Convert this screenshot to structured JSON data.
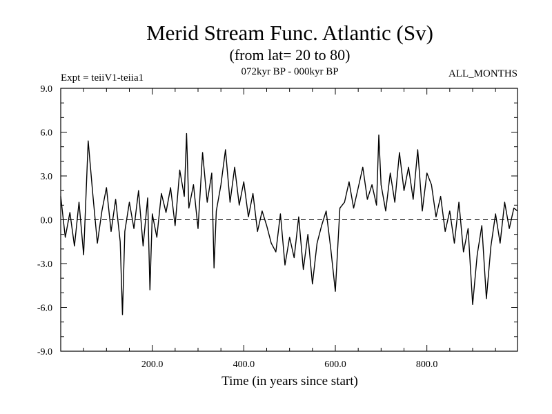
{
  "chart_data": {
    "type": "line",
    "title": "Merid Stream Func. Atlantic (Sv)",
    "subtitle": "(from lat= 20 to 80)",
    "expt_label": "Expt = teiiV1-teiia1",
    "period_label": "072kyr BP - 000kyr BP",
    "months_label": "ALL_MONTHS",
    "xlabel": "Time (in years since start)",
    "ylabel": "",
    "xlim": [
      0,
      998
    ],
    "ylim": [
      -9,
      9
    ],
    "x_ticks": [
      200,
      400,
      600,
      800
    ],
    "x_tick_labels": [
      "200.0",
      "400.0",
      "600.0",
      "800.0"
    ],
    "y_ticks": [
      -9,
      -6,
      -3,
      0,
      3,
      6,
      9
    ],
    "y_tick_labels": [
      "-9.0",
      "-6.0",
      "-3.0",
      "0.0",
      "3.0",
      "6.0",
      "9.0"
    ],
    "zero_line": true,
    "grid": false,
    "line_color": "#000000",
    "series": [
      {
        "x": [
          0,
          10,
          20,
          30,
          40,
          50,
          60,
          70,
          80,
          90,
          100,
          110,
          120,
          130,
          135,
          140,
          150,
          160,
          170,
          180,
          190,
          195,
          200,
          210,
          220,
          230,
          240,
          250,
          260,
          270,
          275,
          280,
          290,
          300,
          310,
          320,
          330,
          335,
          340,
          350,
          360,
          370,
          380,
          390,
          400,
          410,
          420,
          430,
          440,
          450,
          460,
          470,
          480,
          490,
          500,
          510,
          520,
          530,
          540,
          550,
          560,
          570,
          580,
          590,
          600,
          610,
          620,
          630,
          640,
          650,
          660,
          670,
          680,
          690,
          695,
          700,
          710,
          720,
          730,
          740,
          750,
          760,
          770,
          780,
          790,
          800,
          810,
          820,
          830,
          840,
          850,
          860,
          870,
          880,
          890,
          900,
          910,
          920,
          930,
          940,
          950,
          960,
          970,
          980,
          990,
          998
        ],
        "y": [
          1.6,
          -1.2,
          0.5,
          -1.8,
          1.2,
          -2.4,
          5.4,
          1.8,
          -1.6,
          0.6,
          2.2,
          -0.8,
          1.4,
          -1.5,
          -6.5,
          -0.8,
          1.2,
          -0.6,
          2.0,
          -1.8,
          1.5,
          -4.8,
          0.4,
          -1.2,
          1.8,
          0.5,
          2.2,
          -0.4,
          3.4,
          1.6,
          5.9,
          0.8,
          2.4,
          -0.6,
          4.6,
          1.2,
          3.2,
          -3.3,
          0.6,
          2.4,
          4.8,
          1.2,
          3.6,
          1.0,
          2.6,
          0.2,
          1.8,
          -0.8,
          0.6,
          -0.4,
          -1.6,
          -2.2,
          0.4,
          -3.1,
          -1.2,
          -2.6,
          0.2,
          -3.4,
          -1.0,
          -4.4,
          -1.6,
          -0.4,
          0.6,
          -2.0,
          -4.9,
          0.8,
          1.2,
          2.6,
          0.8,
          2.2,
          3.6,
          1.4,
          2.4,
          1.0,
          5.8,
          2.4,
          0.6,
          3.2,
          1.2,
          4.6,
          2.0,
          3.6,
          1.4,
          4.8,
          0.6,
          3.2,
          2.4,
          0.2,
          1.6,
          -0.8,
          0.6,
          -1.6,
          1.2,
          -2.2,
          -0.6,
          -5.8,
          -2.4,
          -0.4,
          -5.4,
          -1.8,
          0.4,
          -1.6,
          1.2,
          -0.6,
          0.8,
          0.6
        ]
      }
    ]
  }
}
